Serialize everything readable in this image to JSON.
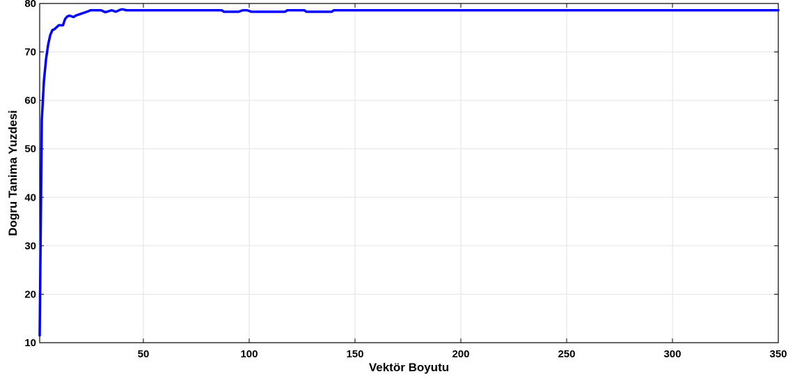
{
  "chart_data": {
    "type": "line",
    "title": "",
    "xlabel": "Vektör Boyutu",
    "ylabel": "Dogru Tanima Yuzdesi",
    "xlim": [
      1,
      350
    ],
    "ylim": [
      10,
      80
    ],
    "xticks": [
      50,
      100,
      150,
      200,
      250,
      300,
      350
    ],
    "yticks": [
      10,
      20,
      30,
      40,
      50,
      60,
      70,
      80
    ],
    "grid": true,
    "legend": "none",
    "series": [
      {
        "color": "#0000ff",
        "x": [
          1,
          2,
          3,
          4,
          5,
          6,
          7,
          8,
          10,
          12,
          13,
          14,
          15,
          17,
          18,
          20,
          22,
          24,
          25,
          27,
          30,
          32,
          35,
          37,
          39,
          40,
          42,
          50,
          60,
          70,
          80,
          87,
          88,
          95,
          97,
          99,
          101,
          103,
          110,
          117,
          118,
          126,
          127,
          135,
          139,
          140,
          150,
          200,
          250,
          300,
          350
        ],
        "y": [
          11.5,
          56,
          64,
          68.5,
          71.5,
          73.5,
          74.5,
          74.7,
          75.5,
          75.5,
          76.8,
          77.3,
          77.5,
          77.2,
          77.5,
          77.8,
          78.1,
          78.4,
          78.6,
          78.6,
          78.6,
          78.2,
          78.6,
          78.3,
          78.7,
          78.8,
          78.6,
          78.6,
          78.6,
          78.6,
          78.6,
          78.6,
          78.3,
          78.3,
          78.6,
          78.6,
          78.3,
          78.3,
          78.3,
          78.3,
          78.6,
          78.6,
          78.3,
          78.3,
          78.3,
          78.6,
          78.6,
          78.6,
          78.6,
          78.6,
          78.6
        ]
      }
    ]
  }
}
